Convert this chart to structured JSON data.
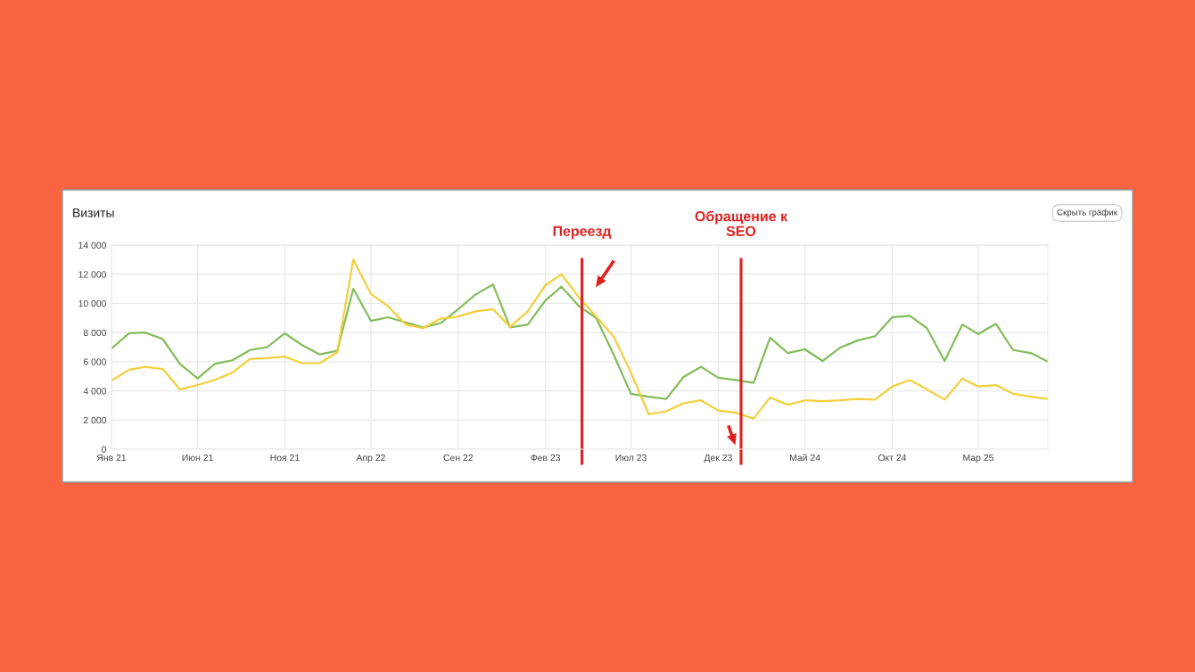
{
  "chart_data": {
    "type": "line",
    "title": "Визиты",
    "x": [
      "2021-01",
      "2021-02",
      "2021-03",
      "2021-04",
      "2021-05",
      "2021-06",
      "2021-07",
      "2021-08",
      "2021-09",
      "2021-10",
      "2021-11",
      "2021-12",
      "2022-01",
      "2022-02",
      "2022-03",
      "2022-04",
      "2022-05",
      "2022-06",
      "2022-07",
      "2022-08",
      "2022-09",
      "2022-10",
      "2022-11",
      "2022-12",
      "2023-01",
      "2023-02",
      "2023-03",
      "2023-04",
      "2023-05",
      "2023-06",
      "2023-07",
      "2023-08",
      "2023-09",
      "2023-10",
      "2023-11",
      "2023-12",
      "2024-01",
      "2024-02",
      "2024-03",
      "2024-04",
      "2024-05",
      "2024-06",
      "2024-07",
      "2024-08",
      "2024-09",
      "2024-10",
      "2024-11",
      "2024-12",
      "2025-01",
      "2025-02",
      "2025-03",
      "2025-04",
      "2025-05",
      "2025-06",
      "2025-07"
    ],
    "series": [
      {
        "color": "#82bd5a",
        "values": [
          6900,
          7950,
          8000,
          7550,
          5850,
          4850,
          5850,
          6100,
          6800,
          7000,
          7950,
          7150,
          6500,
          6750,
          11000,
          8800,
          9050,
          8700,
          8350,
          8650,
          9600,
          10600,
          11300,
          8350,
          8550,
          10200,
          11150,
          9800,
          9000,
          6450,
          3800,
          3600,
          3450,
          4950,
          5650,
          4900,
          4750,
          4550,
          7650,
          6600,
          6850,
          6050,
          6950,
          7450,
          7750,
          9050,
          9150,
          8300,
          6050,
          8550,
          7900,
          8600,
          6800,
          6600,
          6000
        ]
      },
      {
        "color": "#f2cf3c",
        "values": [
          4700,
          5450,
          5650,
          5500,
          4100,
          4400,
          4750,
          5250,
          6200,
          6250,
          6350,
          5900,
          5900,
          6650,
          13000,
          10650,
          9800,
          8550,
          8300,
          8950,
          9100,
          9450,
          9600,
          8400,
          9450,
          11250,
          12000,
          10400,
          9100,
          7700,
          5250,
          2400,
          2600,
          3150,
          3350,
          2650,
          2500,
          2100,
          3550,
          3050,
          3350,
          3300,
          3350,
          3450,
          3400,
          4300,
          4750,
          4100,
          3400,
          4850,
          4300,
          4400,
          3800,
          3600,
          3450
        ]
      }
    ],
    "xlim": [
      "2021-01",
      "2025-07"
    ],
    "xticks": [
      {
        "value": "2021-01",
        "label": "Янв 21"
      },
      {
        "value": "2021-06",
        "label": "Июн 21"
      },
      {
        "value": "2021-11",
        "label": "Ноя 21"
      },
      {
        "value": "2022-04",
        "label": "Апр 22"
      },
      {
        "value": "2022-09",
        "label": "Сен 22"
      },
      {
        "value": "2023-02",
        "label": "Фев 23"
      },
      {
        "value": "2023-07",
        "label": "Июл 23"
      },
      {
        "value": "2023-12",
        "label": "Дек 23"
      },
      {
        "value": "2024-05",
        "label": "Май 24"
      },
      {
        "value": "2024-10",
        "label": "Окт 24"
      },
      {
        "value": "2025-03",
        "label": "Мар 25"
      }
    ],
    "ylim": [
      0,
      14000
    ],
    "yticks": [
      0,
      {
        "value": 2000,
        "label": "2 000"
      },
      {
        "value": 4000,
        "label": "4 000"
      },
      {
        "value": 6000,
        "label": "6 000"
      },
      {
        "value": 8000,
        "label": "8 000"
      },
      {
        "value": 10000,
        "label": "10 000"
      },
      {
        "value": 12000,
        "label": "12 000"
      },
      {
        "value": 14000,
        "label": "14 000"
      }
    ],
    "grid": true,
    "ref_lines": [
      {
        "axis": "x",
        "value": "2023-04-06",
        "label": "Переезд",
        "color": "#e02020"
      },
      {
        "axis": "x",
        "value": "2024-01-10",
        "label": "Обращение к\nSEO",
        "color": "#e02020"
      }
    ],
    "annotations": [
      "Скрыть график"
    ]
  }
}
